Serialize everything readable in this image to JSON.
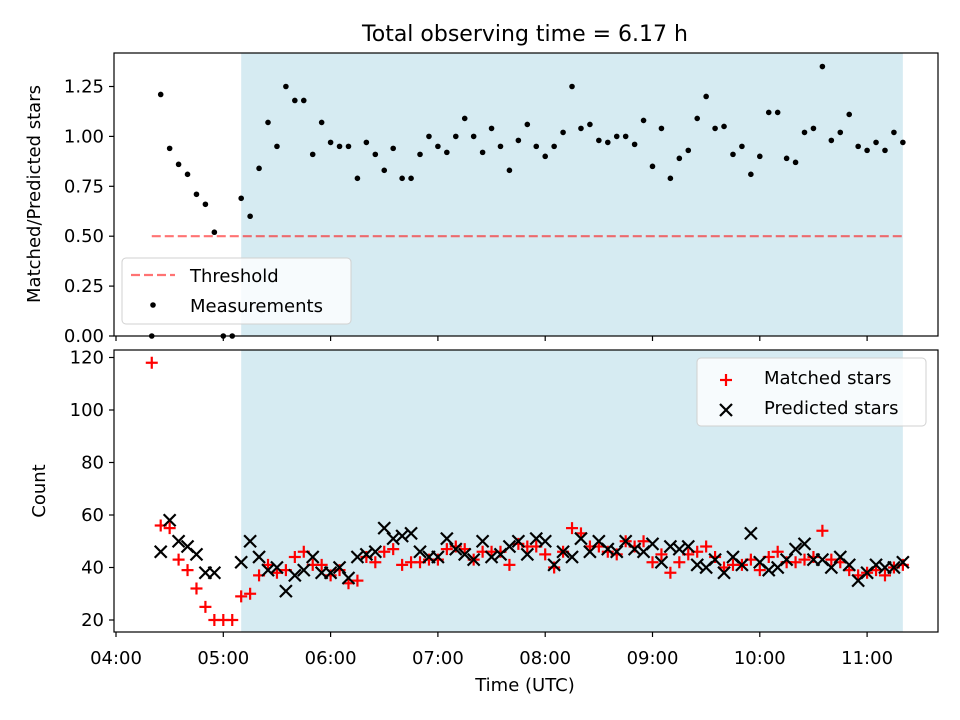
{
  "title": "Total observing time = 6.17 h",
  "chart_data": [
    {
      "type": "scatter",
      "ylabel": "Matched/Predicted stars",
      "xlabel": "",
      "xlim": [
        "04:00",
        "11:20"
      ],
      "ylim": [
        0,
        1.4
      ],
      "yticks": [
        "0.00",
        "0.25",
        "0.50",
        "0.75",
        "1.00",
        "1.25"
      ],
      "grid": false,
      "legend_position": "lower-left",
      "shaded_interval": [
        "05:10",
        "11:20"
      ],
      "threshold": {
        "name": "Threshold",
        "value": 0.5,
        "x_range": [
          "04:20",
          "11:20"
        ]
      },
      "series": [
        {
          "name": "Measurements",
          "points": [
            [
              "04:20",
              0.0
            ],
            [
              "04:25",
              1.21
            ],
            [
              "04:30",
              0.94
            ],
            [
              "04:35",
              0.86
            ],
            [
              "04:40",
              0.81
            ],
            [
              "04:45",
              0.71
            ],
            [
              "04:50",
              0.66
            ],
            [
              "04:55",
              0.52
            ],
            [
              "05:00",
              0.0
            ],
            [
              "05:05",
              0.0
            ],
            [
              "05:10",
              0.69
            ],
            [
              "05:15",
              0.6
            ],
            [
              "05:20",
              0.84
            ],
            [
              "05:25",
              1.07
            ],
            [
              "05:30",
              0.95
            ],
            [
              "05:35",
              1.25
            ],
            [
              "05:40",
              1.18
            ],
            [
              "05:45",
              1.18
            ],
            [
              "05:50",
              0.91
            ],
            [
              "05:55",
              1.07
            ],
            [
              "06:00",
              0.97
            ],
            [
              "06:05",
              0.95
            ],
            [
              "06:10",
              0.95
            ],
            [
              "06:15",
              0.79
            ],
            [
              "06:20",
              0.97
            ],
            [
              "06:25",
              0.91
            ],
            [
              "06:30",
              0.83
            ],
            [
              "06:35",
              0.94
            ],
            [
              "06:40",
              0.79
            ],
            [
              "06:45",
              0.79
            ],
            [
              "06:50",
              0.91
            ],
            [
              "06:55",
              1.0
            ],
            [
              "07:00",
              0.95
            ],
            [
              "07:05",
              0.92
            ],
            [
              "07:10",
              1.0
            ],
            [
              "07:15",
              1.09
            ],
            [
              "07:20",
              1.0
            ],
            [
              "07:25",
              0.92
            ],
            [
              "07:30",
              1.04
            ],
            [
              "07:35",
              0.95
            ],
            [
              "07:40",
              0.83
            ],
            [
              "07:45",
              0.98
            ],
            [
              "07:50",
              1.06
            ],
            [
              "07:55",
              0.95
            ],
            [
              "08:00",
              0.9
            ],
            [
              "08:05",
              0.95
            ],
            [
              "08:10",
              1.02
            ],
            [
              "08:15",
              1.25
            ],
            [
              "08:20",
              1.04
            ],
            [
              "08:25",
              1.06
            ],
            [
              "08:30",
              0.98
            ],
            [
              "08:35",
              0.97
            ],
            [
              "08:40",
              1.0
            ],
            [
              "08:45",
              1.0
            ],
            [
              "08:50",
              0.96
            ],
            [
              "08:55",
              1.08
            ],
            [
              "09:00",
              0.85
            ],
            [
              "09:05",
              1.04
            ],
            [
              "09:10",
              0.79
            ],
            [
              "09:15",
              0.89
            ],
            [
              "09:20",
              0.93
            ],
            [
              "09:25",
              1.09
            ],
            [
              "09:30",
              1.2
            ],
            [
              "09:35",
              1.04
            ],
            [
              "09:40",
              1.05
            ],
            [
              "09:45",
              0.91
            ],
            [
              "09:50",
              0.95
            ],
            [
              "09:55",
              0.81
            ],
            [
              "10:00",
              0.9
            ],
            [
              "10:05",
              1.12
            ],
            [
              "10:10",
              1.12
            ],
            [
              "10:15",
              0.89
            ],
            [
              "10:20",
              0.87
            ],
            [
              "10:25",
              1.02
            ],
            [
              "10:30",
              1.04
            ],
            [
              "10:35",
              1.35
            ],
            [
              "10:40",
              0.98
            ],
            [
              "10:45",
              1.02
            ],
            [
              "10:50",
              1.11
            ],
            [
              "10:55",
              0.95
            ],
            [
              "11:00",
              0.93
            ],
            [
              "11:05",
              0.97
            ],
            [
              "11:10",
              0.93
            ],
            [
              "11:15",
              1.02
            ],
            [
              "11:20",
              0.97
            ]
          ]
        }
      ]
    },
    {
      "type": "scatter",
      "ylabel": "Count",
      "xlabel": "Time (UTC)",
      "xlim": [
        "04:00",
        "11:20"
      ],
      "ylim": [
        15,
        123
      ],
      "yticks": [
        "20",
        "40",
        "60",
        "80",
        "100",
        "120"
      ],
      "xticks": [
        "04:00",
        "05:00",
        "06:00",
        "07:00",
        "08:00",
        "09:00",
        "10:00",
        "11:00"
      ],
      "grid": false,
      "legend_position": "upper-right",
      "shaded_interval": [
        "05:10",
        "11:20"
      ],
      "series": [
        {
          "name": "Matched stars",
          "color": "#ff0000",
          "points": [
            [
              "04:20",
              118
            ],
            [
              "04:25",
              56
            ],
            [
              "04:30",
              55
            ],
            [
              "04:35",
              43
            ],
            [
              "04:40",
              39
            ],
            [
              "04:45",
              32
            ],
            [
              "04:50",
              25
            ],
            [
              "04:55",
              20
            ],
            [
              "05:00",
              20
            ],
            [
              "05:05",
              20
            ],
            [
              "05:10",
              29
            ],
            [
              "05:15",
              30
            ],
            [
              "05:20",
              37
            ],
            [
              "05:25",
              41
            ],
            [
              "05:30",
              38
            ],
            [
              "05:35",
              39
            ],
            [
              "05:40",
              44
            ],
            [
              "05:45",
              46
            ],
            [
              "05:50",
              41
            ],
            [
              "05:55",
              41
            ],
            [
              "06:00",
              37
            ],
            [
              "06:05",
              39
            ],
            [
              "06:10",
              34
            ],
            [
              "06:15",
              35
            ],
            [
              "06:20",
              44
            ],
            [
              "06:25",
              42
            ],
            [
              "06:30",
              46
            ],
            [
              "06:35",
              47
            ],
            [
              "06:40",
              41
            ],
            [
              "06:45",
              42
            ],
            [
              "06:50",
              42
            ],
            [
              "06:55",
              43
            ],
            [
              "07:00",
              43
            ],
            [
              "07:05",
              47
            ],
            [
              "07:10",
              48
            ],
            [
              "07:15",
              47
            ],
            [
              "07:20",
              43
            ],
            [
              "07:25",
              46
            ],
            [
              "07:30",
              46
            ],
            [
              "07:35",
              46
            ],
            [
              "07:40",
              41
            ],
            [
              "07:45",
              49
            ],
            [
              "07:50",
              48
            ],
            [
              "07:55",
              48
            ],
            [
              "08:00",
              45
            ],
            [
              "08:05",
              40
            ],
            [
              "08:10",
              46
            ],
            [
              "08:15",
              55
            ],
            [
              "08:20",
              53
            ],
            [
              "08:25",
              48
            ],
            [
              "08:30",
              48
            ],
            [
              "08:35",
              46
            ],
            [
              "08:40",
              45
            ],
            [
              "08:45",
              50
            ],
            [
              "08:50",
              48
            ],
            [
              "08:55",
              50
            ],
            [
              "09:00",
              42
            ],
            [
              "09:05",
              45
            ],
            [
              "09:10",
              38
            ],
            [
              "09:15",
              42
            ],
            [
              "09:20",
              45
            ],
            [
              "09:25",
              46
            ],
            [
              "09:30",
              48
            ],
            [
              "09:35",
              44
            ],
            [
              "09:40",
              40
            ],
            [
              "09:45",
              41
            ],
            [
              "09:50",
              41
            ],
            [
              "09:55",
              43
            ],
            [
              "10:00",
              39
            ],
            [
              "10:05",
              44
            ],
            [
              "10:10",
              46
            ],
            [
              "10:15",
              42
            ],
            [
              "10:20",
              42
            ],
            [
              "10:25",
              43
            ],
            [
              "10:30",
              44
            ],
            [
              "10:35",
              54
            ],
            [
              "10:40",
              43
            ],
            [
              "10:45",
              42
            ],
            [
              "10:50",
              39
            ],
            [
              "10:55",
              37
            ],
            [
              "11:00",
              38
            ],
            [
              "11:05",
              39
            ],
            [
              "11:10",
              37
            ],
            [
              "11:15",
              40
            ],
            [
              "11:20",
              41
            ]
          ]
        },
        {
          "name": "Predicted stars",
          "color": "#000000",
          "points": [
            [
              "04:25",
              46
            ],
            [
              "04:30",
              58
            ],
            [
              "04:35",
              50
            ],
            [
              "04:40",
              48
            ],
            [
              "04:45",
              45
            ],
            [
              "04:50",
              38
            ],
            [
              "04:55",
              38
            ],
            [
              "05:10",
              42
            ],
            [
              "05:15",
              50
            ],
            [
              "05:20",
              44
            ],
            [
              "05:25",
              39
            ],
            [
              "05:30",
              40
            ],
            [
              "05:35",
              31
            ],
            [
              "05:40",
              37
            ],
            [
              "05:45",
              39
            ],
            [
              "05:50",
              44
            ],
            [
              "05:55",
              38
            ],
            [
              "06:00",
              38
            ],
            [
              "06:05",
              40
            ],
            [
              "06:10",
              36
            ],
            [
              "06:15",
              44
            ],
            [
              "06:20",
              45
            ],
            [
              "06:25",
              46
            ],
            [
              "06:30",
              55
            ],
            [
              "06:35",
              51
            ],
            [
              "06:40",
              52
            ],
            [
              "06:45",
              53
            ],
            [
              "06:50",
              46
            ],
            [
              "06:55",
              44
            ],
            [
              "07:00",
              44
            ],
            [
              "07:05",
              51
            ],
            [
              "07:10",
              47
            ],
            [
              "07:15",
              45
            ],
            [
              "07:20",
              43
            ],
            [
              "07:25",
              50
            ],
            [
              "07:30",
              44
            ],
            [
              "07:35",
              45
            ],
            [
              "07:40",
              48
            ],
            [
              "07:45",
              50
            ],
            [
              "07:50",
              45
            ],
            [
              "07:55",
              51
            ],
            [
              "08:00",
              50
            ],
            [
              "08:05",
              41
            ],
            [
              "08:10",
              46
            ],
            [
              "08:15",
              44
            ],
            [
              "08:20",
              51
            ],
            [
              "08:25",
              46
            ],
            [
              "08:30",
              50
            ],
            [
              "08:35",
              47
            ],
            [
              "08:40",
              46
            ],
            [
              "08:45",
              50
            ],
            [
              "08:50",
              47
            ],
            [
              "08:55",
              46
            ],
            [
              "09:00",
              49
            ],
            [
              "09:05",
              42
            ],
            [
              "09:10",
              48
            ],
            [
              "09:15",
              47
            ],
            [
              "09:20",
              48
            ],
            [
              "09:25",
              41
            ],
            [
              "09:30",
              40
            ],
            [
              "09:35",
              43
            ],
            [
              "09:40",
              38
            ],
            [
              "09:45",
              44
            ],
            [
              "09:50",
              41
            ],
            [
              "09:55",
              53
            ],
            [
              "10:00",
              42
            ],
            [
              "10:05",
              39
            ],
            [
              "10:10",
              40
            ],
            [
              "10:15",
              43
            ],
            [
              "10:20",
              47
            ],
            [
              "10:25",
              49
            ],
            [
              "10:30",
              43
            ],
            [
              "10:35",
              43
            ],
            [
              "10:40",
              40
            ],
            [
              "10:45",
              44
            ],
            [
              "10:50",
              41
            ],
            [
              "10:55",
              35
            ],
            [
              "11:00",
              38
            ],
            [
              "11:05",
              41
            ],
            [
              "11:10",
              40
            ],
            [
              "11:15",
              40
            ],
            [
              "11:20",
              42
            ]
          ]
        }
      ]
    }
  ]
}
